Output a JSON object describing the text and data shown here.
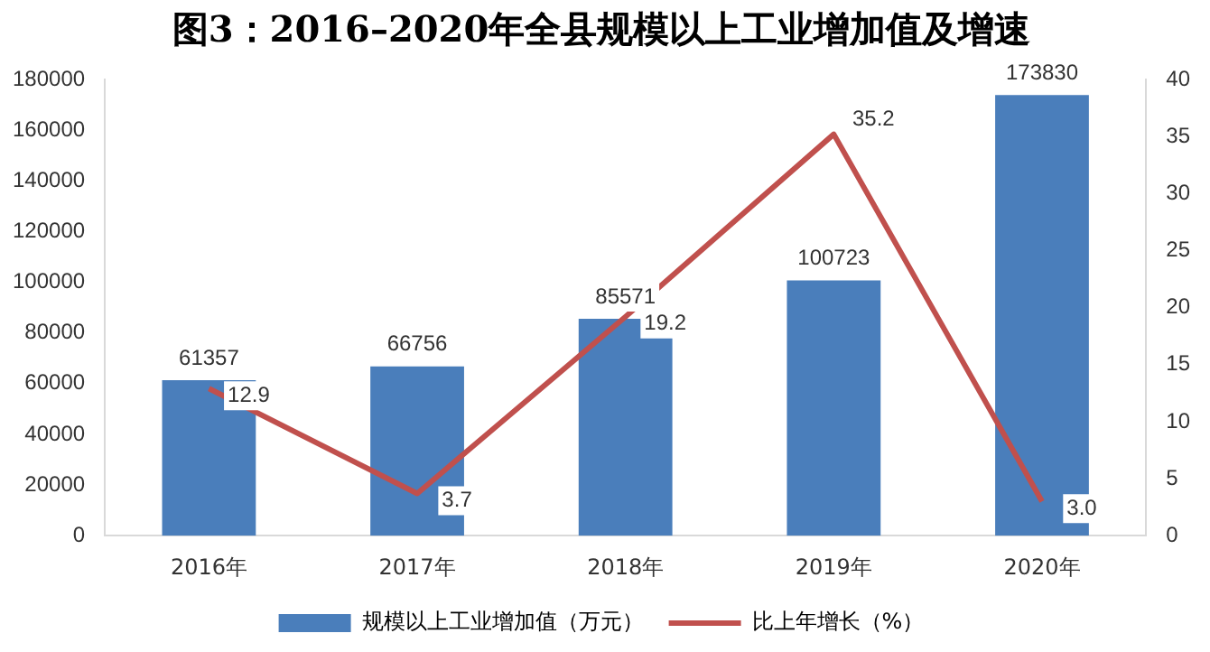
{
  "chart_data": {
    "type": "bar",
    "title": "图3：2016–2020年全县规模以上工业增加值及增速",
    "categories": [
      "2016年",
      "2017年",
      "2018年",
      "2019年",
      "2020年"
    ],
    "series": [
      {
        "name": "规模以上工业增加值（万元）",
        "color": "#4a7ebb",
        "values": [
          61357,
          66756,
          85571,
          100723,
          173830
        ]
      },
      {
        "name": "比上年增长（%）",
        "type": "line",
        "axis": "y2",
        "color": "#c0504d",
        "values": [
          12.9,
          3.7,
          19.2,
          35.2,
          3.0
        ],
        "value_labels": [
          "12.9",
          "3.7",
          "19.2",
          "35.2",
          "3.0"
        ]
      }
    ],
    "ylim": [
      0,
      180000
    ],
    "yticks": [
      0,
      20000,
      40000,
      60000,
      80000,
      100000,
      120000,
      140000,
      160000,
      180000
    ],
    "y2lim": [
      0,
      40
    ],
    "y2ticks": [
      0,
      5,
      10,
      15,
      20,
      25,
      30,
      35,
      40
    ],
    "data_labels": true,
    "legend": "bottom",
    "grid": false,
    "marker": "none",
    "line_style": "solid"
  }
}
